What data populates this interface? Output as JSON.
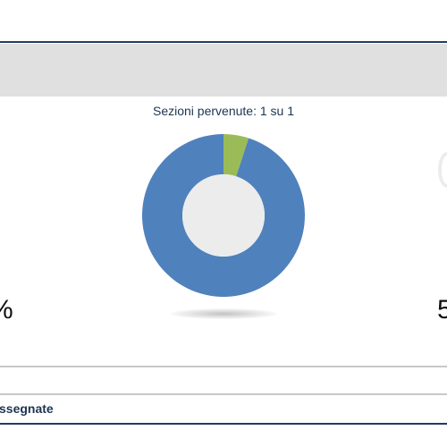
{
  "header": {
    "sections_received": "Sezioni pervenute: 1 su 1"
  },
  "chart_data": {
    "type": "pie",
    "categories": [
      "",
      ""
    ],
    "values": [
      95,
      5
    ],
    "colors": [
      "#4f81bd",
      "#9bbb59"
    ],
    "title": "",
    "center_color": "#ececec"
  },
  "stats": {
    "left_value_partial": "%",
    "right_value_partial": "5"
  },
  "footer": {
    "assigned_label_partial": "ssegnate"
  },
  "colors": {
    "accent": "#1f3f5f",
    "band": "#e0e0e0",
    "text": "#1c3553"
  }
}
